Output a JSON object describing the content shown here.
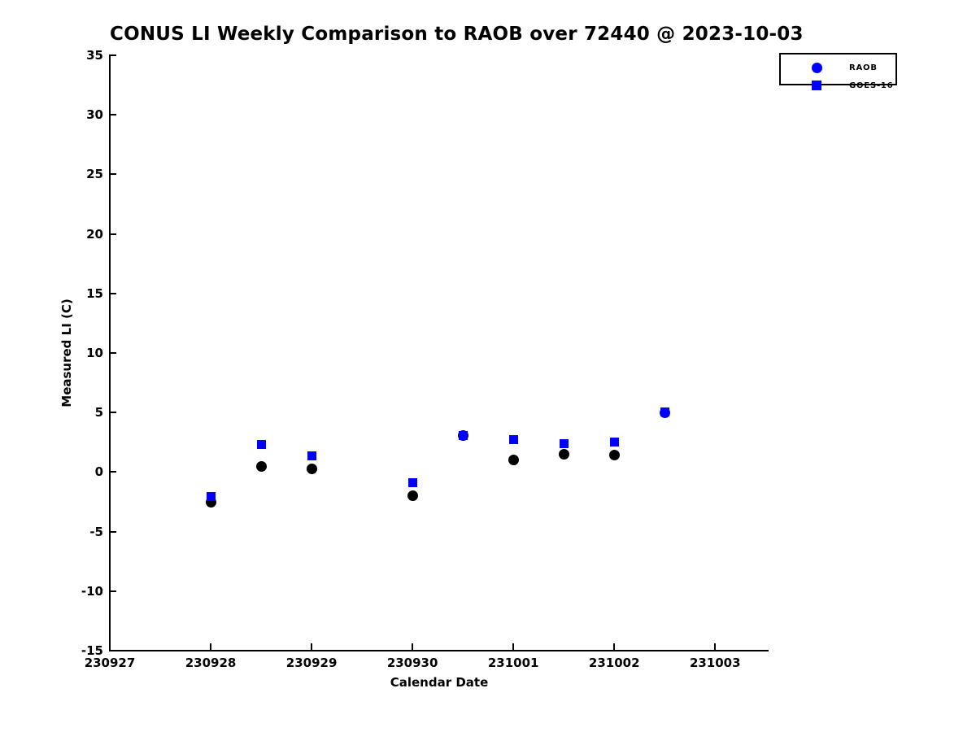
{
  "chart_data": {
    "type": "scatter",
    "title": "CONUS LI Weekly Comparison to RAOB over 72440 @ 2023-10-03",
    "xlabel": "Calendar Date",
    "ylabel": "Measured LI (C)",
    "background": "#ffffff",
    "grid": false,
    "x_tick_labels": [
      "230927",
      "230928",
      "230929",
      "230930",
      "231001",
      "231002",
      "231003"
    ],
    "y_ticks": [
      35,
      30,
      25,
      20,
      15,
      10,
      5,
      0,
      -5,
      -10,
      -15
    ],
    "ylim": [
      -15,
      35
    ],
    "x_axis_note": "x measured in days after first tick 230927; axis extends ~0.53 day past 231003",
    "xlim_days": [
      0,
      6.53
    ],
    "colors": {
      "blue": "#0000ff",
      "black": "#000000"
    },
    "legend": {
      "position": "top-right-outside-plot",
      "items": [
        {
          "label": "RAOB",
          "marker": "circle",
          "color": "#0000ff"
        },
        {
          "label": "GOES-16",
          "marker": "square",
          "color": "#0000ff"
        }
      ]
    },
    "series": [
      {
        "name": "RAOB",
        "marker": "circle",
        "default_color": "#000000",
        "points": [
          {
            "x_days": 1.0,
            "y": -2.5,
            "color": "#000000"
          },
          {
            "x_days": 1.5,
            "y": 0.5,
            "color": "#000000"
          },
          {
            "x_days": 2.0,
            "y": 0.3,
            "color": "#000000"
          },
          {
            "x_days": 3.0,
            "y": -2.0,
            "color": "#000000"
          },
          {
            "x_days": 3.5,
            "y": 3.1,
            "color": "#000000"
          },
          {
            "x_days": 4.0,
            "y": 1.0,
            "color": "#000000"
          },
          {
            "x_days": 4.5,
            "y": 1.5,
            "color": "#000000"
          },
          {
            "x_days": 5.0,
            "y": 1.4,
            "color": "#000000"
          },
          {
            "x_days": 5.5,
            "y": 5.0,
            "color": "#0000ff",
            "on_top": true
          }
        ]
      },
      {
        "name": "GOES-16",
        "marker": "square",
        "default_color": "#0000ff",
        "points": [
          {
            "x_days": 1.0,
            "y": -2.05
          },
          {
            "x_days": 1.5,
            "y": 2.3
          },
          {
            "x_days": 2.0,
            "y": 1.35
          },
          {
            "x_days": 3.0,
            "y": -0.9
          },
          {
            "x_days": 3.5,
            "y": 3.1
          },
          {
            "x_days": 4.0,
            "y": 2.75
          },
          {
            "x_days": 4.5,
            "y": 2.4
          },
          {
            "x_days": 5.0,
            "y": 2.55
          },
          {
            "x_days": 5.5,
            "y": 5.05
          }
        ]
      }
    ]
  }
}
